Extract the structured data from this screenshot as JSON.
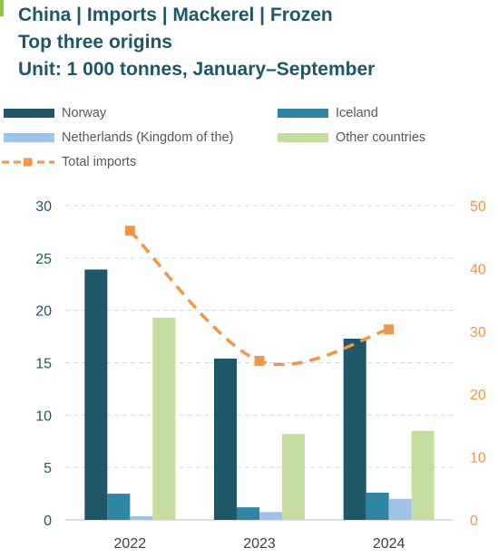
{
  "title": {
    "line1": "China | Imports | Mackerel | Frozen",
    "line2": "Top three origins",
    "line3": "Unit: 1 000 tonnes, January–September"
  },
  "colors": {
    "title": "#1f5668",
    "norway": "#1f5668",
    "iceland": "#2e86a4",
    "netherlands": "#9dc3e6",
    "other": "#c5dea0",
    "total": "#f0954a",
    "left_axis": "#1f5668",
    "right_axis": "#f0954a",
    "grid": "#d9d9d9"
  },
  "chart_data": {
    "type": "bar",
    "categories": [
      "2022",
      "2023",
      "2024"
    ],
    "series": [
      {
        "name": "Norway",
        "axis": "left",
        "values": [
          23.9,
          15.4,
          17.3
        ]
      },
      {
        "name": "Iceland",
        "axis": "left",
        "values": [
          2.5,
          1.2,
          2.6
        ]
      },
      {
        "name": "Netherlands (Kingdom of the)",
        "axis": "left",
        "values": [
          0.35,
          0.75,
          2.0
        ]
      },
      {
        "name": "Other countries",
        "axis": "left",
        "values": [
          19.3,
          8.2,
          8.5
        ]
      },
      {
        "name": "Total imports",
        "type": "line",
        "style": "dashed-with-square-markers",
        "axis": "right",
        "values": [
          46,
          25.3,
          30.3
        ]
      }
    ],
    "ylim_left": [
      0,
      30
    ],
    "yticks_left": [
      "0",
      "5",
      "10",
      "15",
      "20",
      "25",
      "30"
    ],
    "ylim_right": [
      0,
      50
    ],
    "yticks_right": [
      "0",
      "10",
      "20",
      "30",
      "40",
      "50"
    ],
    "grid": "horizontal-dashed",
    "legend_position": "top"
  }
}
